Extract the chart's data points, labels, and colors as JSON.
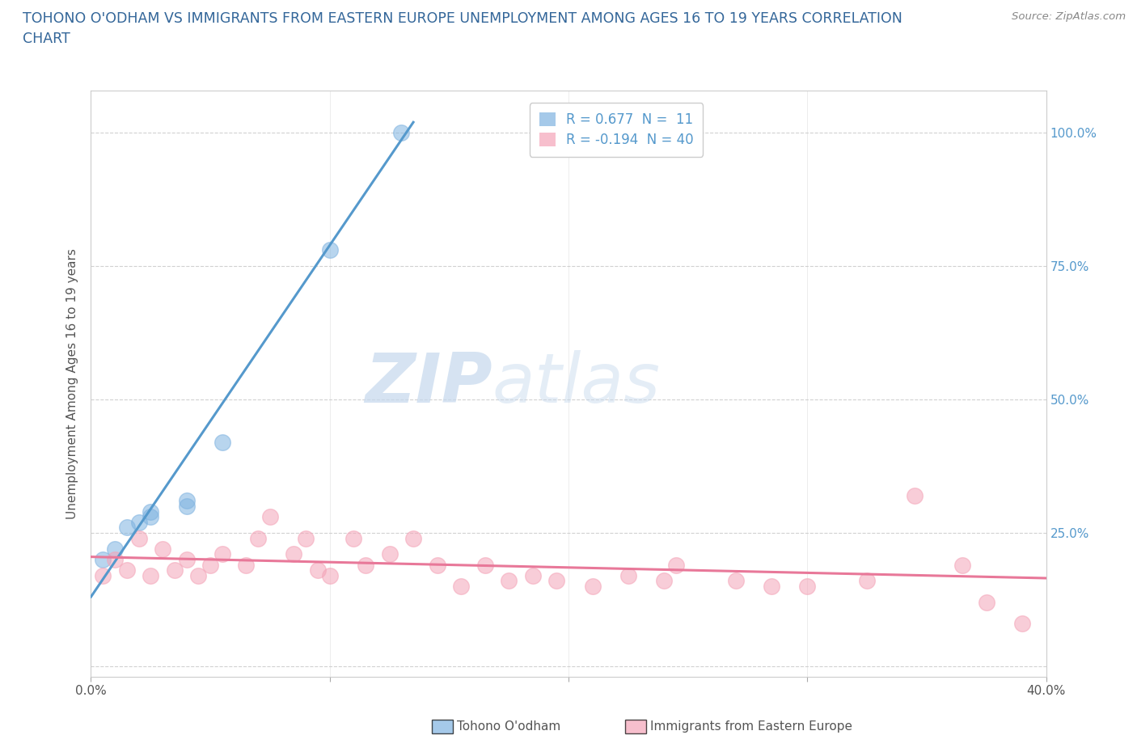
{
  "title": "TOHONO O'ODHAM VS IMMIGRANTS FROM EASTERN EUROPE UNEMPLOYMENT AMONG AGES 16 TO 19 YEARS CORRELATION\nCHART",
  "source_text": "Source: ZipAtlas.com",
  "ylabel": "Unemployment Among Ages 16 to 19 years",
  "watermark_zip": "ZIP",
  "watermark_atlas": "atlas",
  "xlim": [
    0.0,
    0.4
  ],
  "ylim": [
    -0.02,
    1.08
  ],
  "xticks": [
    0.0,
    0.1,
    0.2,
    0.3,
    0.4
  ],
  "xtick_labels": [
    "0.0%",
    "",
    "",
    "",
    "40.0%"
  ],
  "yticks": [
    0.0,
    0.25,
    0.5,
    0.75,
    1.0
  ],
  "ytick_labels": [
    "",
    "25.0%",
    "50.0%",
    "75.0%",
    "100.0%"
  ],
  "legend_label1": "R = 0.677  N =  11",
  "legend_label2": "R = -0.194  N = 40",
  "series1_name": "Tohono O'odham",
  "series2_name": "Immigrants from Eastern Europe",
  "series1_color": "#7fb3e0",
  "series2_color": "#f4a4b8",
  "series1_edge": "#7fb3e0",
  "series2_edge": "#f4a4b8",
  "trendline1_color": "#5599cc",
  "trendline2_color": "#e87899",
  "grid_color": "#cccccc",
  "title_color": "#336699",
  "tick_label_color": "#5599cc",
  "background_color": "#ffffff",
  "series1_x": [
    0.005,
    0.01,
    0.015,
    0.02,
    0.025,
    0.025,
    0.04,
    0.04,
    0.055,
    0.1,
    0.13
  ],
  "series1_y": [
    0.2,
    0.22,
    0.26,
    0.27,
    0.28,
    0.29,
    0.3,
    0.31,
    0.42,
    0.78,
    1.0
  ],
  "series2_x": [
    0.005,
    0.01,
    0.015,
    0.02,
    0.025,
    0.03,
    0.035,
    0.04,
    0.045,
    0.05,
    0.055,
    0.065,
    0.07,
    0.075,
    0.085,
    0.09,
    0.095,
    0.1,
    0.11,
    0.115,
    0.125,
    0.135,
    0.145,
    0.155,
    0.165,
    0.175,
    0.185,
    0.195,
    0.21,
    0.225,
    0.24,
    0.245,
    0.27,
    0.285,
    0.3,
    0.325,
    0.345,
    0.365,
    0.375,
    0.39
  ],
  "series2_y": [
    0.17,
    0.2,
    0.18,
    0.24,
    0.17,
    0.22,
    0.18,
    0.2,
    0.17,
    0.19,
    0.21,
    0.19,
    0.24,
    0.28,
    0.21,
    0.24,
    0.18,
    0.17,
    0.24,
    0.19,
    0.21,
    0.24,
    0.19,
    0.15,
    0.19,
    0.16,
    0.17,
    0.16,
    0.15,
    0.17,
    0.16,
    0.19,
    0.16,
    0.15,
    0.15,
    0.16,
    0.32,
    0.19,
    0.12,
    0.08
  ],
  "trendline1_x": [
    0.0,
    0.135
  ],
  "trendline1_y": [
    0.13,
    1.02
  ],
  "trendline2_x": [
    0.0,
    0.4
  ],
  "trendline2_y": [
    0.205,
    0.165
  ]
}
